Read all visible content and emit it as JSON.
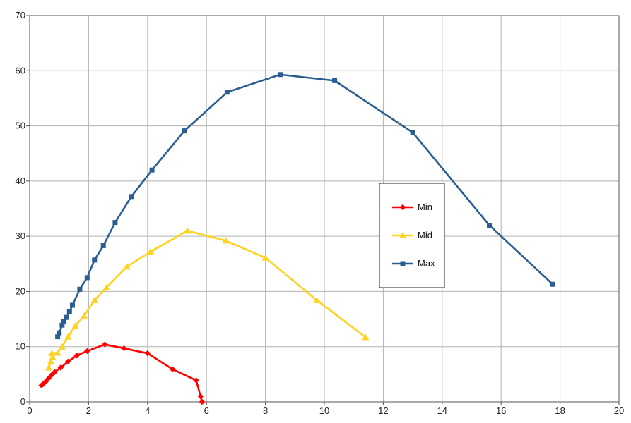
{
  "chart_data": {
    "type": "scatter",
    "title": "",
    "xlabel": "",
    "ylabel": "",
    "xlim": [
      0,
      20
    ],
    "ylim": [
      0,
      70
    ],
    "x_ticks": [
      0,
      2,
      4,
      6,
      8,
      10,
      12,
      14,
      16,
      18,
      20
    ],
    "y_ticks": [
      0,
      10,
      20,
      30,
      40,
      50,
      60,
      70
    ],
    "grid": true,
    "legend_position": "center-right",
    "series": [
      {
        "name": "Min",
        "color": "#ff0000",
        "marker": "diamond",
        "points": [
          [
            0.4,
            3.0
          ],
          [
            0.45,
            3.2
          ],
          [
            0.55,
            3.7
          ],
          [
            0.65,
            4.3
          ],
          [
            0.75,
            4.9
          ],
          [
            0.85,
            5.4
          ],
          [
            1.05,
            6.2
          ],
          [
            1.3,
            7.3
          ],
          [
            1.6,
            8.4
          ],
          [
            1.95,
            9.2
          ],
          [
            2.55,
            10.4
          ],
          [
            3.2,
            9.7
          ],
          [
            4.0,
            8.8
          ],
          [
            4.85,
            5.9
          ],
          [
            5.65,
            3.9
          ],
          [
            5.8,
            1.0
          ],
          [
            5.85,
            0.0
          ]
        ]
      },
      {
        "name": "Mid",
        "color": "#ffd21f",
        "marker": "triangle",
        "points": [
          [
            0.65,
            6.2
          ],
          [
            0.72,
            7.3
          ],
          [
            0.78,
            8.1
          ],
          [
            0.75,
            8.8
          ],
          [
            0.95,
            8.9
          ],
          [
            1.1,
            10.0
          ],
          [
            1.3,
            11.8
          ],
          [
            1.55,
            13.8
          ],
          [
            1.85,
            15.6
          ],
          [
            2.2,
            18.4
          ],
          [
            2.6,
            20.7
          ],
          [
            3.3,
            24.5
          ],
          [
            4.1,
            27.2
          ],
          [
            5.35,
            31.0
          ],
          [
            6.65,
            29.2
          ],
          [
            8.0,
            26.1
          ],
          [
            9.75,
            18.4
          ],
          [
            11.4,
            11.7
          ]
        ]
      },
      {
        "name": "Max",
        "color": "#2a5e93",
        "marker": "square",
        "points": [
          [
            0.95,
            11.8
          ],
          [
            1.0,
            12.5
          ],
          [
            1.1,
            13.9
          ],
          [
            1.15,
            14.6
          ],
          [
            1.25,
            15.3
          ],
          [
            1.35,
            16.3
          ],
          [
            1.45,
            17.5
          ],
          [
            1.7,
            20.4
          ],
          [
            1.95,
            22.5
          ],
          [
            2.2,
            25.7
          ],
          [
            2.5,
            28.3
          ],
          [
            2.9,
            32.5
          ],
          [
            3.45,
            37.2
          ],
          [
            4.15,
            42.0
          ],
          [
            5.25,
            49.1
          ],
          [
            6.7,
            56.1
          ],
          [
            8.5,
            59.3
          ],
          [
            10.35,
            58.2
          ],
          [
            13.0,
            48.8
          ],
          [
            15.6,
            32.0
          ],
          [
            17.75,
            21.3
          ]
        ]
      }
    ]
  }
}
